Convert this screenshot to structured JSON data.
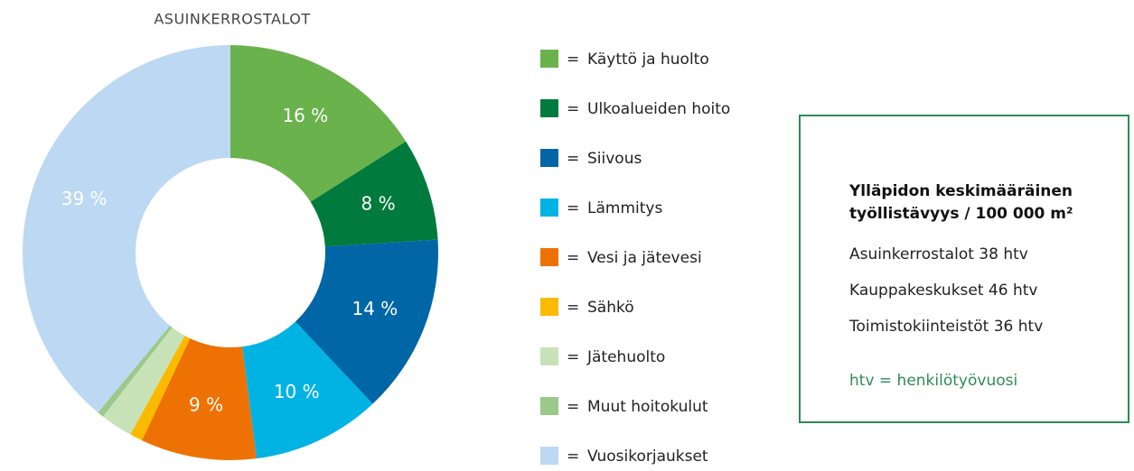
{
  "chart_data": {
    "type": "donut",
    "title": "ASUINKERROSTALOT",
    "categories": [
      "Käyttö ja huolto",
      "Ulkoalueiden hoito",
      "Siivous",
      "Lämmitys",
      "Vesi ja jätevesi",
      "Sähkö",
      "Jätehuolto",
      "Muut hoitokulut",
      "Vuosikorjaukset"
    ],
    "values": [
      16,
      8,
      14,
      10,
      9,
      1,
      2.5,
      0.5,
      39
    ],
    "value_labels": [
      "16 %",
      "8 %",
      "14 %",
      "10 %",
      "9 %",
      null,
      null,
      null,
      "39 %"
    ],
    "colors": [
      "#6ab24c",
      "#007a3d",
      "#0066a6",
      "#00b3e3",
      "#ee7203",
      "#fbba00",
      "#c8e2b8",
      "#9bc98a",
      "#bdd8f2"
    ],
    "legend_prefix": "="
  },
  "info_box": {
    "title": [
      "Ylläpidon keskimääräinen",
      "työllistävyys / 100 000 m²"
    ],
    "lines": [
      "Asuinkerrostalot 38 htv",
      "Kauppakeskukset 46 htv",
      "Toimistokiinteistöt 36 htv"
    ],
    "note": "htv = henkilötyövuosi"
  }
}
